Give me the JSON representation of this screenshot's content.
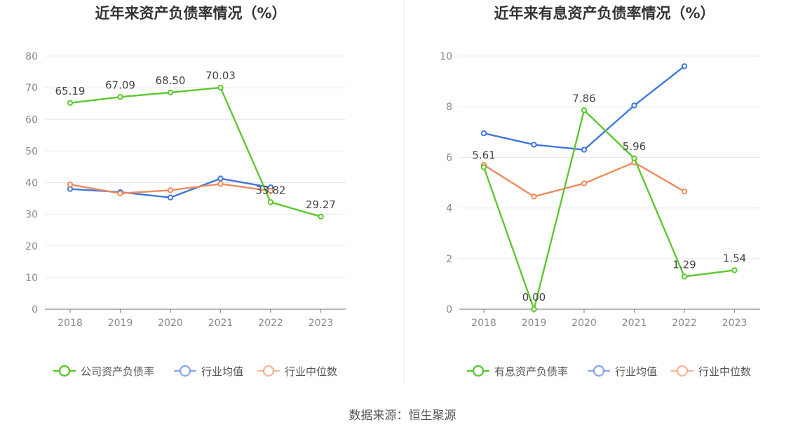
{
  "source_text": "数据来源：恒生聚源",
  "chart_data": [
    {
      "type": "line",
      "title": "近年来资产负债率情况（%）",
      "categories": [
        "2018",
        "2019",
        "2020",
        "2021",
        "2022",
        "2023"
      ],
      "ylim": [
        0,
        80
      ],
      "yticks": [
        "0",
        "10",
        "20",
        "30",
        "40",
        "50",
        "60",
        "70",
        "80"
      ],
      "grid": true,
      "legend_position": "bottom",
      "series": [
        {
          "name": "公司资产负债率",
          "color": "#5cc82f",
          "values": [
            65.19,
            67.09,
            68.5,
            70.03,
            33.82,
            29.27
          ],
          "labels": [
            "65.19",
            "67.09",
            "68.50",
            "70.03",
            "33.82",
            "29.27"
          ]
        },
        {
          "name": "行业均值",
          "color": "#3f78de",
          "values": [
            38.0,
            37.0,
            35.3,
            41.3,
            38.5,
            null
          ]
        },
        {
          "name": "行业中位数",
          "color": "#f08a5d",
          "values": [
            39.4,
            36.6,
            37.6,
            39.6,
            37.4,
            null
          ]
        }
      ]
    },
    {
      "type": "line",
      "title": "近年来有息资产负债率情况（%）",
      "categories": [
        "2018",
        "2019",
        "2020",
        "2021",
        "2022",
        "2023"
      ],
      "ylim": [
        0,
        10
      ],
      "yticks": [
        "0",
        "2",
        "4",
        "6",
        "8",
        "10"
      ],
      "grid": true,
      "legend_position": "bottom",
      "series": [
        {
          "name": "有息资产负债率",
          "color": "#5cc82f",
          "values": [
            5.61,
            0.0,
            7.86,
            5.96,
            1.29,
            1.54
          ],
          "labels": [
            "5.61",
            "0.00",
            "7.86",
            "5.96",
            "1.29",
            "1.54"
          ]
        },
        {
          "name": "行业均值",
          "color": "#3f78de",
          "values": [
            6.95,
            6.5,
            6.3,
            8.05,
            9.6,
            null
          ]
        },
        {
          "name": "行业中位数",
          "color": "#f08a5d",
          "values": [
            5.7,
            4.45,
            4.97,
            5.8,
            4.65,
            null
          ]
        }
      ]
    }
  ]
}
